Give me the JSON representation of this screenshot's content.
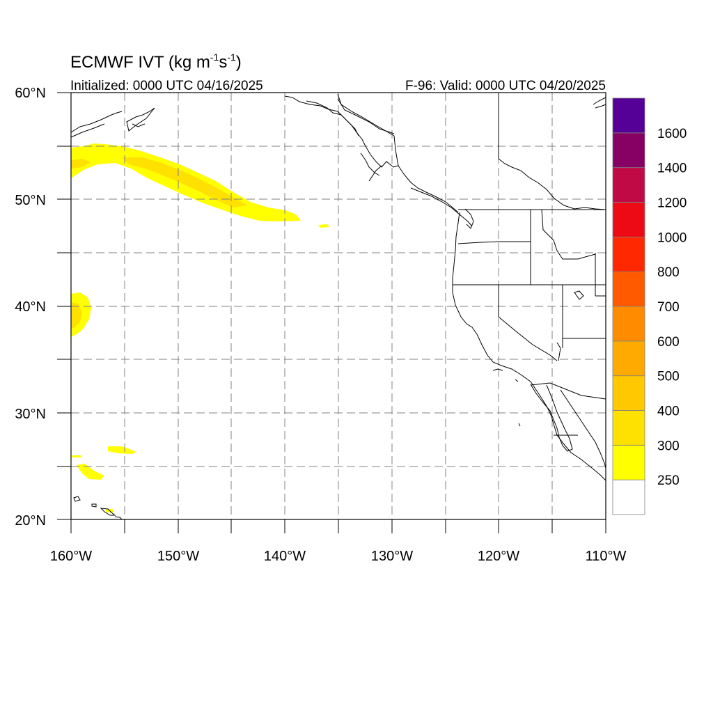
{
  "title": {
    "main_prefix": "ECMWF IVT (kg m",
    "exp1": "-1",
    "mid": "s",
    "exp2": "-1",
    "close": ")"
  },
  "subtitle_left": "Initialized: 0000 UTC 04/16/2025",
  "subtitle_right": "F-96: Valid: 0000 UTC 04/20/2025",
  "map": {
    "lon_range": [
      -160,
      -110
    ],
    "lat_range": [
      20,
      60
    ],
    "grid": "dashed",
    "x_tick_labels": [
      "160°W",
      "150°W",
      "140°W",
      "130°W",
      "120°W",
      "110°W"
    ],
    "y_tick_labels": [
      "60°N",
      "50°N",
      "40°N",
      "30°N",
      "20°N"
    ]
  },
  "colorbar": {
    "levels": [
      "250",
      "300",
      "400",
      "500",
      "600",
      "700",
      "800",
      "1000",
      "1200",
      "1400",
      "1600"
    ],
    "colors": [
      "#ffffff",
      "#ffff00",
      "#ffe100",
      "#ffc800",
      "#ffaa00",
      "#ff8c00",
      "#ff5a00",
      "#ff2800",
      "#ee0a14",
      "#c00a46",
      "#870064",
      "#550096"
    ]
  }
}
